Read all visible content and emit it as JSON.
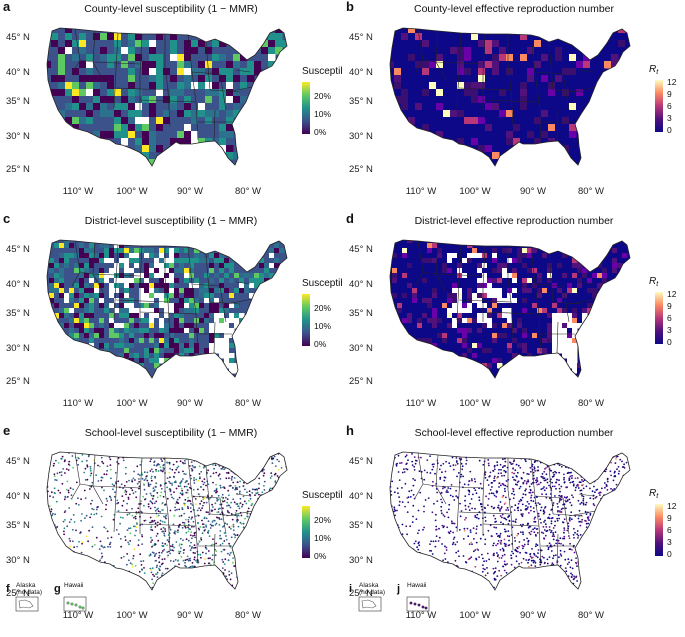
{
  "latitude_labels": [
    "45° N",
    "40° N",
    "35° N",
    "30° N",
    "25° N"
  ],
  "longitude_labels": [
    "110° W",
    "100° W",
    "90° W",
    "80° W"
  ],
  "susceptibility_legend": {
    "title": "Susceptibility",
    "ticks": [
      "20%",
      "10%",
      "0%"
    ],
    "colors": [
      "#fde725",
      "#5ec962",
      "#21918c",
      "#3b528b",
      "#440154"
    ]
  },
  "rt_legend": {
    "title": "R",
    "subscript": "t",
    "ticks": [
      "12",
      "9",
      "6",
      "3",
      "0"
    ],
    "colors": [
      "#fcfdbf",
      "#fc8961",
      "#b73779",
      "#51127c",
      "#0d0887"
    ]
  },
  "panels": [
    {
      "id": "a",
      "letter": "a",
      "title": "County-level susceptibility (1 − MMR)",
      "type": "susceptibility",
      "level": "county"
    },
    {
      "id": "b",
      "letter": "b",
      "title": "County-level effective reproduction number",
      "type": "rt",
      "level": "county"
    },
    {
      "id": "c",
      "letter": "c",
      "title": "District-level susceptibility (1 − MMR)",
      "type": "susceptibility",
      "level": "district"
    },
    {
      "id": "d",
      "letter": "d",
      "title": "District-level effective reproduction number",
      "type": "rt",
      "level": "district"
    },
    {
      "id": "e",
      "letter": "e",
      "title": "School-level susceptibility (1 − MMR)",
      "type": "susceptibility",
      "level": "school",
      "insets": [
        {
          "letter": "f",
          "label_line1": "Alaska",
          "label_line2": "(no data)"
        },
        {
          "letter": "g",
          "label_line1": "Hawaii",
          "label_line2": ""
        }
      ]
    },
    {
      "id": "h",
      "letter": "h",
      "title": "School-level effective reproduction number",
      "type": "rt",
      "level": "school",
      "insets": [
        {
          "letter": "i",
          "label_line1": "Alaska",
          "label_line2": "(no data)"
        },
        {
          "letter": "j",
          "label_line1": "Hawaii",
          "label_line2": ""
        }
      ]
    }
  ]
}
